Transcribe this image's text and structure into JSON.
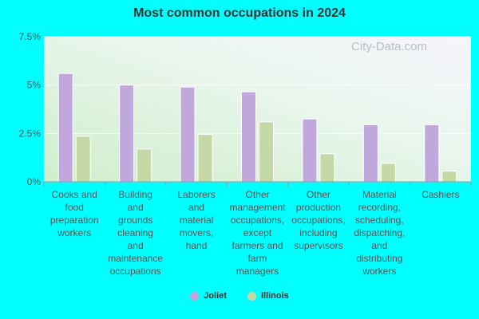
{
  "chart_data": {
    "type": "bar",
    "title": "Most common occupations in 2024",
    "categories": [
      "Cooks and food preparation workers",
      "Building and grounds cleaning and maintenance occupations",
      "Laborers and material movers, hand",
      "Other management occupations, except farmers and farm managers",
      "Other production occupations, including supervisors",
      "Material recording, scheduling, dispatching, and distributing workers",
      "Cashiers"
    ],
    "category_lines": [
      [
        "Cooks and",
        "food",
        "preparation",
        "workers"
      ],
      [
        "Building",
        "and",
        "grounds",
        "cleaning",
        "and",
        "maintenance",
        "occupations"
      ],
      [
        "Laborers",
        "and",
        "material",
        "movers,",
        "hand"
      ],
      [
        "Other",
        "management",
        "occupations,",
        "except",
        "farmers and",
        "farm",
        "managers"
      ],
      [
        "Other",
        "production",
        "occupations,",
        "including",
        "supervisors"
      ],
      [
        "Material",
        "recording,",
        "scheduling,",
        "dispatching,",
        "and",
        "distributing",
        "workers"
      ],
      [
        "Cashiers"
      ]
    ],
    "series": [
      {
        "name": "Joliet",
        "color": "#c0a8dc",
        "values": [
          5.6,
          5.0,
          4.9,
          4.65,
          3.25,
          2.95,
          2.95
        ]
      },
      {
        "name": "Illinois",
        "color": "#c5d9a6",
        "values": [
          2.35,
          1.7,
          2.45,
          3.1,
          1.45,
          0.95,
          0.55
        ]
      }
    ],
    "yticks": [
      "0%",
      "2.5%",
      "5%",
      "7.5%"
    ],
    "ytick_values": [
      0,
      2.5,
      5,
      7.5
    ],
    "ylim": [
      0,
      7.5
    ],
    "legend_position": "bottom-center",
    "grid": true
  },
  "watermark": "City-Data.com"
}
